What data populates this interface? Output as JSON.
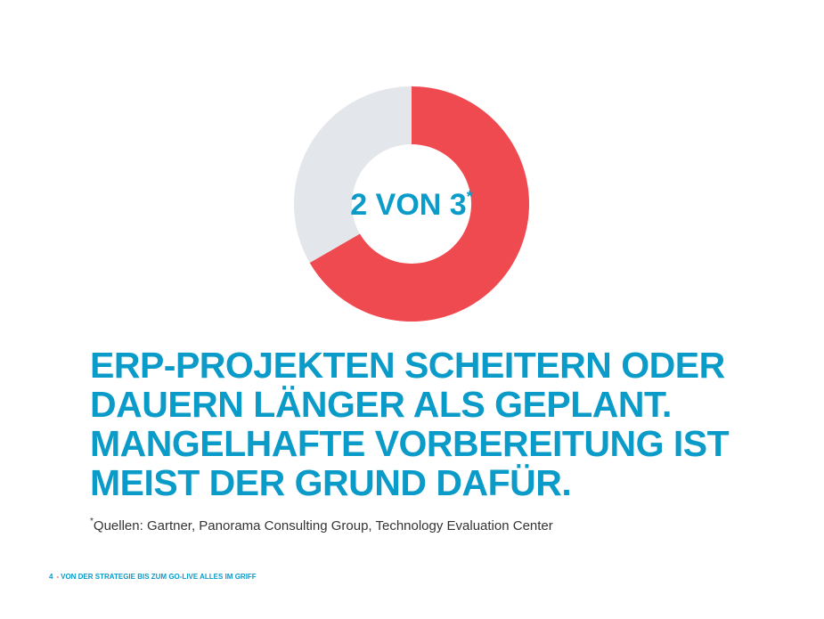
{
  "colors": {
    "accent_blue": "#0a9bc9",
    "accent_red": "#ef4a50",
    "track_gray": "#e3e6ea",
    "text_dark": "#333333"
  },
  "chart_data": {
    "type": "pie",
    "style": "donut",
    "categories": [
      "scheitern oder dauern länger",
      "übrige"
    ],
    "values": [
      2,
      1
    ],
    "colors": [
      "#ef4a50",
      "#e3e6ea"
    ],
    "center_label": {
      "text": "2 VON 3",
      "marker": "*"
    }
  },
  "headline": {
    "lines": [
      "ERP-PROJEKTEN  SCHEITERN ODER",
      "DAUERN LÄNGER ALS GEPLANT.",
      "MANGELHAFTE VORBEREITUNG IST",
      "MEIST DER GRUND DAFÜR."
    ]
  },
  "source": {
    "marker": "*",
    "text": "Quellen: Gartner, Panorama Consulting Group, Technology Evaluation Center"
  },
  "footer": {
    "page_number": "4",
    "separator": "-",
    "title": "VON DER STRATEGIE BIS ZUM GO-LIVE ALLES IM GRIFF"
  }
}
